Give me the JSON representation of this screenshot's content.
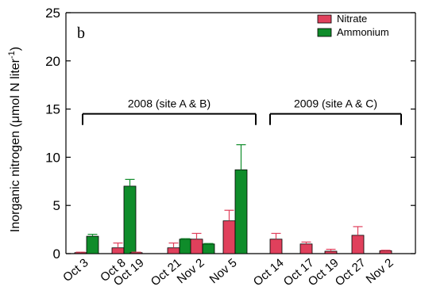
{
  "chart_data": {
    "type": "bar",
    "panel_label": "b",
    "ylabel": "Inorganic nitrogen (μmol N liter",
    "ylabel_sup": "-1",
    "ylabel_close": ")",
    "ylim": [
      0,
      25
    ],
    "yticks": [
      0,
      5,
      10,
      15,
      20,
      25
    ],
    "categories": [
      "Oct 3",
      "Oct 8",
      "Oct 19",
      "Oct 21",
      "Nov 2",
      "Nov 5",
      "Oct 14",
      "Oct 17",
      "Oct 19",
      "Oct 27",
      "Nov 2"
    ],
    "series": [
      {
        "name": "Nitrate",
        "color": "#e0405c",
        "values": [
          0.1,
          0.6,
          0.1,
          0.6,
          1.5,
          3.4,
          1.5,
          1.0,
          0.25,
          1.9,
          0.3
        ],
        "errors": [
          0.05,
          0.5,
          0.05,
          0.5,
          0.6,
          1.1,
          0.6,
          0.2,
          0.2,
          0.9,
          0.05
        ]
      },
      {
        "name": "Ammonium",
        "color": "#0f8c2a",
        "values": [
          1.8,
          7.0,
          null,
          1.5,
          1.0,
          8.7,
          null,
          null,
          null,
          null,
          null
        ],
        "errors": [
          0.2,
          0.7,
          null,
          0.05,
          0.05,
          2.6,
          null,
          null,
          null,
          null,
          null
        ]
      }
    ],
    "annotations": [
      {
        "text": "2008 (site A & B)",
        "from": "Oct 3",
        "to": "Nov 5",
        "y": 14.5
      },
      {
        "text": "2009 (site A & C)",
        "from": "Oct 14",
        "to": "Nov 2",
        "y": 14.5
      }
    ],
    "legend_position": "top-right",
    "grid": false
  }
}
